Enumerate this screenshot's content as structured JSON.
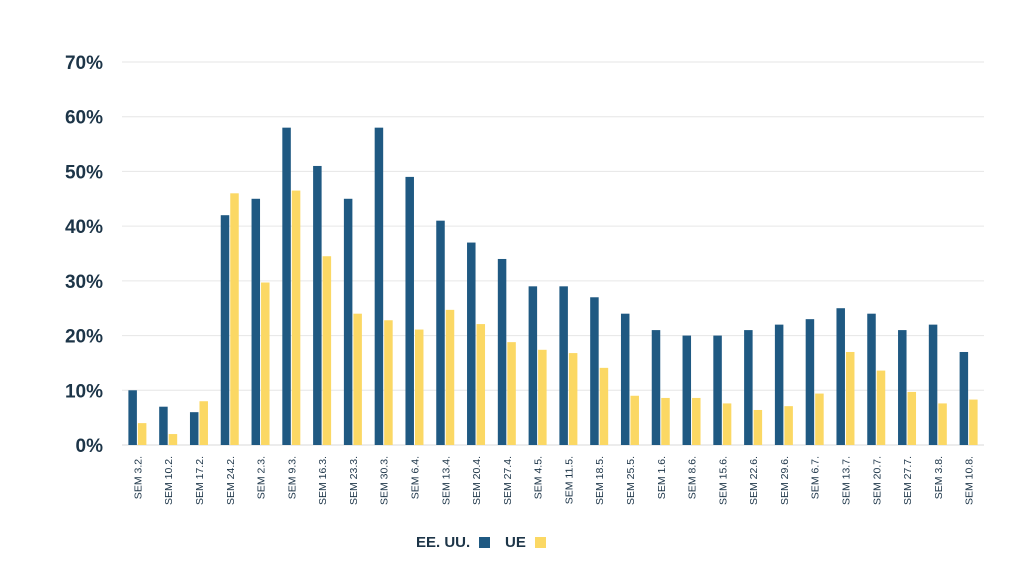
{
  "chart_data": {
    "type": "bar",
    "title": "",
    "xlabel": "",
    "ylabel": "",
    "ylim": [
      0,
      70
    ],
    "yticks": [
      "0%",
      "10%",
      "20%",
      "30%",
      "40%",
      "50%",
      "60%",
      "70%"
    ],
    "grid": true,
    "legend_position": "bottom-center",
    "categories": [
      "SEM 3.2.",
      "SEM 10.2.",
      "SEM 17.2.",
      "SEM 24.2.",
      "SEM 2.3.",
      "SEM 9.3.",
      "SEM 16.3.",
      "SEM 23.3.",
      "SEM 30.3.",
      "SEM 6.4.",
      "SEM 13.4.",
      "SEM 20.4.",
      "SEM 27.4.",
      "SEM 4.5.",
      "SEM 11.5.",
      "SEM 18.5.",
      "SEM 25.5.",
      "SEM 1.6.",
      "SEM 8.6.",
      "SEM 15.6.",
      "SEM 22.6.",
      "SEM 29.6.",
      "SEM 6.7.",
      "SEM 13.7.",
      "SEM 20.7.",
      "SEM 27.7.",
      "SEM 3.8.",
      "SEM 10.8."
    ],
    "series": [
      {
        "name": "EE. UU.",
        "color": "#1f5982",
        "values": [
          10,
          7,
          6,
          42,
          45,
          58,
          51,
          45,
          58,
          49,
          41,
          37,
          34,
          29,
          29,
          27,
          24,
          21,
          20,
          20,
          21,
          22,
          23,
          25,
          24,
          21,
          22,
          17
        ]
      },
      {
        "name": "UE",
        "color": "#fbd864",
        "values": [
          4,
          2,
          8,
          46,
          29.7,
          46.5,
          34.5,
          24,
          22.8,
          21.1,
          24.7,
          22.1,
          18.8,
          17.4,
          16.8,
          14.1,
          9,
          8.6,
          8.6,
          7.6,
          6.4,
          7.1,
          9.4,
          17,
          13.6,
          9.7,
          7.6,
          8.3
        ]
      }
    ]
  }
}
